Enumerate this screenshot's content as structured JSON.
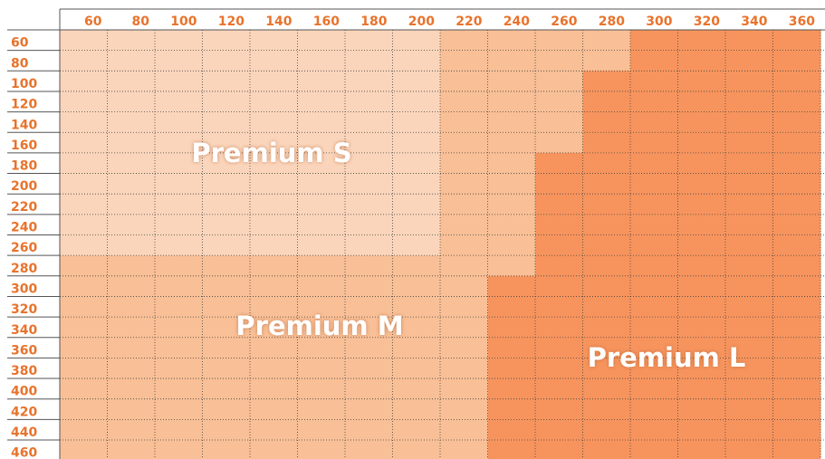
{
  "chart_data": {
    "type": "heatmap",
    "columns": [
      "60",
      "80",
      "100",
      "120",
      "140",
      "160",
      "180",
      "200",
      "220",
      "240",
      "260",
      "280",
      "300",
      "320",
      "340",
      "360"
    ],
    "rows": [
      "60",
      "80",
      "100",
      "120",
      "140",
      "160",
      "180",
      "200",
      "220",
      "240",
      "260",
      "280",
      "300",
      "320",
      "340",
      "360",
      "380",
      "400",
      "420",
      "440",
      "460"
    ],
    "zones": [
      {
        "name": "Premium S",
        "color": "#fbd5bb",
        "level": 1
      },
      {
        "name": "Premium M",
        "color": "#f9bf96",
        "level": 2
      },
      {
        "name": "Premium L",
        "color": "#f7945d",
        "level": 3
      }
    ],
    "cells": [
      [
        1,
        1,
        1,
        1,
        1,
        1,
        1,
        1,
        2,
        2,
        2,
        2,
        3,
        3,
        3,
        3
      ],
      [
        1,
        1,
        1,
        1,
        1,
        1,
        1,
        1,
        2,
        2,
        2,
        2,
        3,
        3,
        3,
        3
      ],
      [
        1,
        1,
        1,
        1,
        1,
        1,
        1,
        1,
        2,
        2,
        2,
        3,
        3,
        3,
        3,
        3
      ],
      [
        1,
        1,
        1,
        1,
        1,
        1,
        1,
        1,
        2,
        2,
        2,
        3,
        3,
        3,
        3,
        3
      ],
      [
        1,
        1,
        1,
        1,
        1,
        1,
        1,
        1,
        2,
        2,
        2,
        3,
        3,
        3,
        3,
        3
      ],
      [
        1,
        1,
        1,
        1,
        1,
        1,
        1,
        1,
        2,
        2,
        2,
        3,
        3,
        3,
        3,
        3
      ],
      [
        1,
        1,
        1,
        1,
        1,
        1,
        1,
        1,
        2,
        2,
        3,
        3,
        3,
        3,
        3,
        3
      ],
      [
        1,
        1,
        1,
        1,
        1,
        1,
        1,
        1,
        2,
        2,
        3,
        3,
        3,
        3,
        3,
        3
      ],
      [
        1,
        1,
        1,
        1,
        1,
        1,
        1,
        1,
        2,
        2,
        3,
        3,
        3,
        3,
        3,
        3
      ],
      [
        1,
        1,
        1,
        1,
        1,
        1,
        1,
        1,
        2,
        2,
        3,
        3,
        3,
        3,
        3,
        3
      ],
      [
        1,
        1,
        1,
        1,
        1,
        1,
        1,
        1,
        2,
        2,
        3,
        3,
        3,
        3,
        3,
        3
      ],
      [
        2,
        2,
        2,
        2,
        2,
        2,
        2,
        2,
        2,
        2,
        3,
        3,
        3,
        3,
        3,
        3
      ],
      [
        2,
        2,
        2,
        2,
        2,
        2,
        2,
        2,
        2,
        3,
        3,
        3,
        3,
        3,
        3,
        3
      ],
      [
        2,
        2,
        2,
        2,
        2,
        2,
        2,
        2,
        2,
        3,
        3,
        3,
        3,
        3,
        3,
        3
      ],
      [
        2,
        2,
        2,
        2,
        2,
        2,
        2,
        2,
        2,
        3,
        3,
        3,
        3,
        3,
        3,
        3
      ],
      [
        2,
        2,
        2,
        2,
        2,
        2,
        2,
        2,
        2,
        3,
        3,
        3,
        3,
        3,
        3,
        3
      ],
      [
        2,
        2,
        2,
        2,
        2,
        2,
        2,
        2,
        2,
        3,
        3,
        3,
        3,
        3,
        3,
        3
      ],
      [
        2,
        2,
        2,
        2,
        2,
        2,
        2,
        2,
        2,
        3,
        3,
        3,
        3,
        3,
        3,
        3
      ],
      [
        2,
        2,
        2,
        2,
        2,
        2,
        2,
        2,
        2,
        3,
        3,
        3,
        3,
        3,
        3,
        3
      ],
      [
        2,
        2,
        2,
        2,
        2,
        2,
        2,
        2,
        2,
        3,
        3,
        3,
        3,
        3,
        3,
        3
      ],
      [
        2,
        2,
        2,
        2,
        2,
        2,
        2,
        2,
        2,
        3,
        3,
        3,
        3,
        3,
        3,
        3
      ]
    ],
    "header_color": "#e8732c",
    "grid": true
  }
}
